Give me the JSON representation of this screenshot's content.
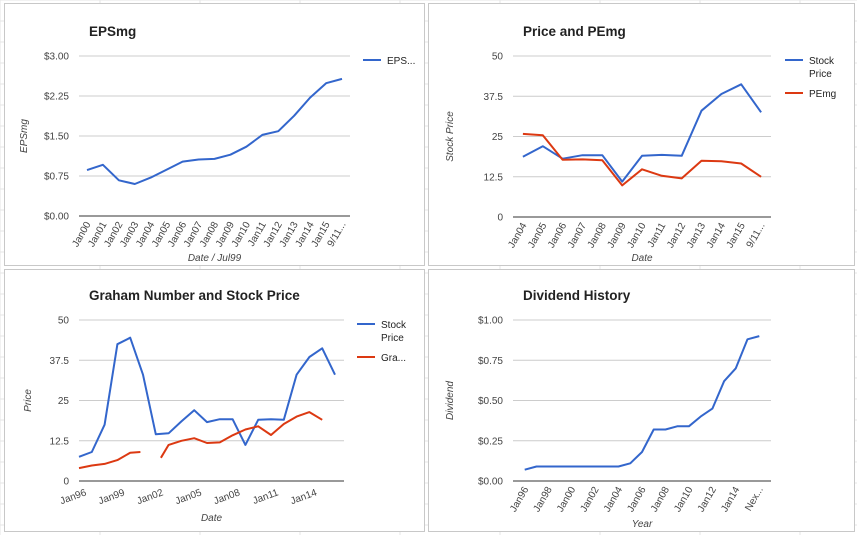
{
  "colors": {
    "blue": "#3366cc",
    "red": "#dc3912",
    "axis": "#333333",
    "grid": "#cccccc",
    "sheet": "#e6e6e6"
  },
  "chart_data": [
    {
      "id": "eps",
      "type": "line",
      "title": "EPSmg",
      "ylabel": "EPSmg",
      "xlabel": "Date / Jul99",
      "ylim": [
        0,
        3
      ],
      "yticks": [
        "$0.00",
        "$0.75",
        "$1.50",
        "$2.25",
        "$3.00"
      ],
      "categories": [
        "Jan00",
        "Jan01",
        "Jan02",
        "Jan03",
        "Jan04",
        "Jan05",
        "Jan06",
        "Jan07",
        "Jan08",
        "Jan09",
        "Jan10",
        "Jan11",
        "Jan12",
        "Jan13",
        "Jan14",
        "Jan15",
        "9/11..."
      ],
      "series": [
        {
          "name": "EPS...",
          "color": "#3366cc",
          "values": [
            0.86,
            0.96,
            0.67,
            0.6,
            0.72,
            0.87,
            1.02,
            1.06,
            1.07,
            1.15,
            1.3,
            1.52,
            1.59,
            1.88,
            2.22,
            2.49,
            2.57
          ]
        }
      ]
    },
    {
      "id": "pe",
      "type": "line",
      "title": "Price and PEmg",
      "ylabel": "Stock Price",
      "xlabel": "Date",
      "ylim": [
        0,
        50
      ],
      "yticks": [
        "0",
        "12.5",
        "25",
        "37.5",
        "50"
      ],
      "categories": [
        "Jan04",
        "Jan05",
        "Jan06",
        "Jan07",
        "Jan08",
        "Jan09",
        "Jan10",
        "Jan11",
        "Jan12",
        "Jan13",
        "Jan14",
        "Jan15",
        "9/11..."
      ],
      "series": [
        {
          "name": "Stock Price",
          "color": "#3366cc",
          "values": [
            18.7,
            22.0,
            18.1,
            19.2,
            19.2,
            11.0,
            19.0,
            19.3,
            19.0,
            33.0,
            38.2,
            41.2,
            32.5
          ]
        },
        {
          "name": "PEmg",
          "color": "#dc3912",
          "values": [
            25.8,
            25.4,
            17.8,
            17.9,
            17.6,
            9.8,
            14.8,
            12.8,
            12.0,
            17.5,
            17.3,
            16.6,
            12.5
          ]
        }
      ]
    },
    {
      "id": "graham",
      "type": "line",
      "title": "Graham Number and Stock Price",
      "ylabel": "Price",
      "xlabel": "Date",
      "ylim": [
        0,
        50
      ],
      "yticks": [
        "0",
        "12.5",
        "25",
        "37.5",
        "50"
      ],
      "xlim": [
        1996,
        2016.7
      ],
      "xticks": [
        {
          "label": "Jan96",
          "x": 1996
        },
        {
          "label": "Jan99",
          "x": 1999
        },
        {
          "label": "Jan02",
          "x": 2002
        },
        {
          "label": "Jan05",
          "x": 2005
        },
        {
          "label": "Jan08",
          "x": 2008
        },
        {
          "label": "Jan11",
          "x": 2011
        },
        {
          "label": "Jan14",
          "x": 2014
        }
      ],
      "series": [
        {
          "name": "Stock Price",
          "color": "#3366cc",
          "points": [
            [
              1996,
              7.5
            ],
            [
              1997,
              9
            ],
            [
              1998,
              17.5
            ],
            [
              1999,
              42.5
            ],
            [
              2000,
              44.5
            ],
            [
              2001,
              33
            ],
            [
              2002,
              14.5
            ],
            [
              2003,
              14.8
            ],
            [
              2004,
              18.5
            ],
            [
              2005,
              22
            ],
            [
              2006,
              18.3
            ],
            [
              2007,
              19.2
            ],
            [
              2008,
              19.2
            ],
            [
              2009,
              11.2
            ],
            [
              2010,
              19
            ],
            [
              2011,
              19.2
            ],
            [
              2012,
              19
            ],
            [
              2013,
              33
            ],
            [
              2014,
              38.5
            ],
            [
              2015,
              41.2
            ],
            [
              2016,
              33
            ]
          ]
        },
        {
          "name": "Gra...",
          "color": "#dc3912",
          "points": [
            [
              1996,
              4
            ],
            [
              1997,
              4.8
            ],
            [
              1998,
              5.3
            ],
            [
              1999,
              6.5
            ],
            [
              2000,
              8.8
            ],
            [
              2000.8,
              9
            ],
            null,
            [
              2002.4,
              7.2
            ],
            [
              2003,
              11.2
            ],
            [
              2004,
              12.5
            ],
            [
              2005,
              13.3
            ],
            [
              2006,
              11.8
            ],
            [
              2007,
              12
            ],
            [
              2008,
              14.2
            ],
            [
              2009,
              16
            ],
            [
              2010,
              17
            ],
            [
              2011,
              14.3
            ],
            [
              2012,
              17.7
            ],
            [
              2013,
              20
            ],
            [
              2014,
              21.4
            ],
            [
              2015,
              19
            ]
          ]
        }
      ]
    },
    {
      "id": "dividend",
      "type": "line",
      "title": "Dividend History",
      "ylabel": "Dividend",
      "xlabel": "Year",
      "ylim": [
        0,
        1
      ],
      "yticks": [
        "$0.00",
        "$0.25",
        "$0.50",
        "$0.75",
        "$1.00"
      ],
      "categories": [
        "Jan96",
        "Jan98",
        "Jan00",
        "Jan02",
        "Jan04",
        "Jan06",
        "Jan08",
        "Jan10",
        "Jan12",
        "Jan14",
        "Nex..."
      ],
      "series": [
        {
          "name": "Dividend",
          "color": "#3366cc",
          "points": [
            [
              0,
              0.07
            ],
            [
              0.5,
              0.09
            ],
            [
              1,
              0.09
            ],
            [
              2,
              0.09
            ],
            [
              3,
              0.09
            ],
            [
              4,
              0.09
            ],
            [
              4.5,
              0.11
            ],
            [
              5,
              0.18
            ],
            [
              5.5,
              0.32
            ],
            [
              6,
              0.32
            ],
            [
              6.5,
              0.34
            ],
            [
              7,
              0.34
            ],
            [
              7.5,
              0.4
            ],
            [
              8,
              0.45
            ],
            [
              8.5,
              0.62
            ],
            [
              9,
              0.7
            ],
            [
              9.5,
              0.88
            ],
            [
              10,
              0.9
            ]
          ]
        }
      ]
    }
  ]
}
